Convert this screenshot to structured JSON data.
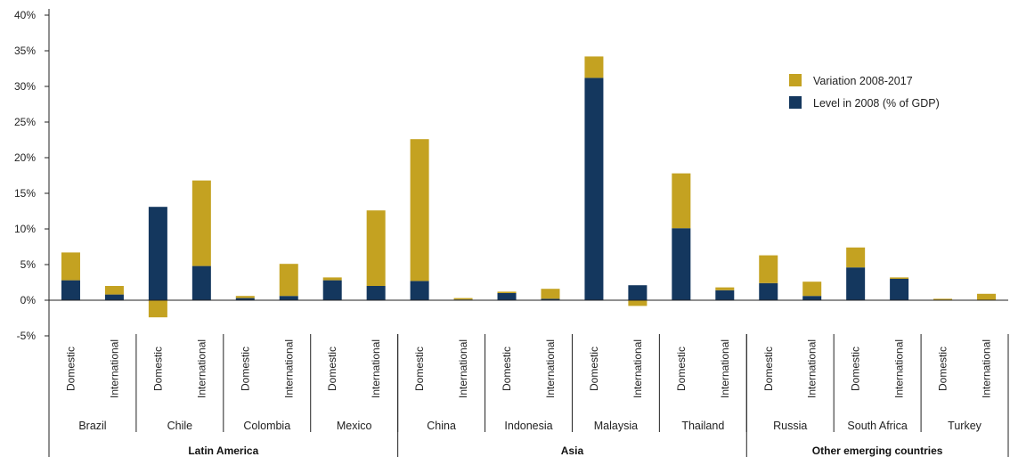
{
  "chart_data": {
    "type": "bar",
    "stacked": true,
    "ylim": [
      -5,
      40
    ],
    "yticks": [
      -5,
      0,
      5,
      10,
      15,
      20,
      25,
      30,
      35,
      40
    ],
    "ytick_labels": [
      "-5%",
      "0%",
      "5%",
      "10%",
      "15%",
      "20%",
      "25%",
      "30%",
      "35%",
      "40%"
    ],
    "grid": false,
    "legend_position": "upper-right",
    "categories": [
      "Brazil Domestic",
      "Brazil International",
      "Chile Domestic",
      "Chile International",
      "Colombia Domestic",
      "Colombia International",
      "Mexico Domestic",
      "Mexico International",
      "China Domestic",
      "China International",
      "Indonesia Domestic",
      "Indonesia International",
      "Malaysia Domestic",
      "Malaysia International",
      "Thailand Domestic",
      "Thailand International",
      "Russia Domestic",
      "Russia International",
      "South Africa Domestic",
      "South Africa International",
      "Turkey Domestic",
      "Turkey International"
    ],
    "sub_labels": [
      "Domestic",
      "International"
    ],
    "countries": [
      "Brazil",
      "Chile",
      "Colombia",
      "Mexico",
      "China",
      "Indonesia",
      "Malaysia",
      "Thailand",
      "Russia",
      "South Africa",
      "Turkey"
    ],
    "regions": [
      {
        "name": "Latin America",
        "countries": 4
      },
      {
        "name": "Asia",
        "countries": 4
      },
      {
        "name": "Other emerging countries",
        "countries": 3
      }
    ],
    "series": [
      {
        "name": "Level in 2008 (% of GDP)",
        "color": "#14375e",
        "values": [
          2.8,
          0.8,
          13.1,
          4.8,
          0.3,
          0.6,
          2.8,
          2.0,
          2.7,
          0.1,
          1.0,
          0.2,
          31.2,
          2.1,
          10.1,
          1.4,
          2.4,
          0.6,
          4.6,
          3.0,
          0.0,
          0.0
        ]
      },
      {
        "name": "Variation 2008-2017",
        "color": "#c4a221",
        "values": [
          3.9,
          1.2,
          -2.4,
          12.0,
          0.3,
          4.5,
          0.4,
          10.6,
          19.9,
          0.2,
          0.2,
          1.4,
          3.0,
          -0.8,
          7.7,
          0.4,
          3.9,
          2.0,
          2.8,
          0.2,
          0.2,
          0.9
        ]
      }
    ],
    "legend": [
      "Variation 2008-2017",
      "Level in 2008 (% of GDP)"
    ]
  }
}
